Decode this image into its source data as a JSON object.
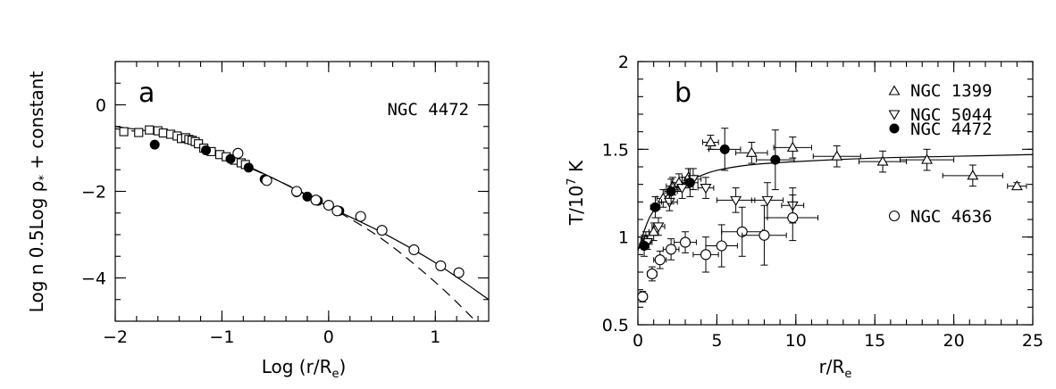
{
  "chart_data": [
    {
      "type": "scatter",
      "panel_label": "a",
      "annotation": "NGC 4472",
      "xlabel_main": "Log (r/R",
      "xlabel_sub": "e",
      "xlabel_close": ")",
      "ylabel": "Log n  0.5Log ρ",
      "ylabel_sub": "*",
      "ylabel_tail": " + constant",
      "xlim": [
        -2,
        1.5
      ],
      "ylim": [
        -5,
        1
      ],
      "xticks": [
        -2,
        -1,
        0,
        1
      ],
      "xtick_labels": [
        "−2",
        "−1",
        "0",
        "1"
      ],
      "yticks": [
        0,
        -2,
        -4
      ],
      "ytick_labels": [
        "0",
        "−2",
        "−4"
      ],
      "series": [
        {
          "name": "squares",
          "marker": "open-square",
          "x": [
            -1.92,
            -1.78,
            -1.68,
            -1.6,
            -1.55,
            -1.48,
            -1.42,
            -1.38,
            -1.34,
            -1.31,
            -1.28,
            -1.25,
            -1.22,
            -1.17,
            -1.1,
            -1.02,
            -0.96,
            -0.88,
            -0.82,
            -0.78
          ],
          "y": [
            -0.62,
            -0.64,
            -0.58,
            -0.6,
            -0.65,
            -0.68,
            -0.72,
            -0.78,
            -0.76,
            -0.8,
            -0.82,
            -0.85,
            -0.9,
            -1.0,
            -1.08,
            -1.15,
            -1.2,
            -1.28,
            -1.34,
            -1.38
          ]
        },
        {
          "name": "filled",
          "marker": "filled-circle",
          "x": [
            -1.63,
            -1.15,
            -0.92,
            -0.75,
            -0.6,
            -0.3,
            -0.2,
            -0.1,
            0.1
          ],
          "y": [
            -0.92,
            -1.05,
            -1.25,
            -1.45,
            -1.72,
            -2.02,
            -2.12,
            -2.22,
            -2.45
          ]
        },
        {
          "name": "open_circles",
          "marker": "open-circle",
          "x": [
            -0.85,
            -0.58,
            -0.3,
            -0.12,
            0.0,
            0.08,
            0.3,
            0.5,
            0.8,
            1.05,
            1.22
          ],
          "y": [
            -1.12,
            -1.75,
            -2.0,
            -2.2,
            -2.32,
            -2.45,
            -2.58,
            -2.9,
            -3.35,
            -3.72,
            -3.88
          ]
        }
      ],
      "curves": [
        {
          "name": "solid",
          "style": "solid",
          "x": [
            -2.0,
            -1.5,
            -1.0,
            -0.5,
            0.0,
            0.5,
            1.0,
            1.5
          ],
          "y": [
            -0.5,
            -0.7,
            -1.15,
            -1.72,
            -2.35,
            -2.95,
            -3.65,
            -4.5
          ]
        },
        {
          "name": "dashed",
          "style": "dashed",
          "x": [
            -2.0,
            -1.5,
            -1.0,
            -0.5,
            0.0,
            0.5,
            1.0,
            1.38
          ],
          "y": [
            -0.55,
            -0.75,
            -1.2,
            -1.72,
            -2.35,
            -3.1,
            -4.1,
            -5.0
          ]
        }
      ]
    },
    {
      "type": "scatter",
      "panel_label": "b",
      "xlabel_main": "r/R",
      "xlabel_sub": "e",
      "ylabel_main": "T/10",
      "ylabel_sup": "7",
      "ylabel_unit": " K",
      "xlim": [
        0,
        25
      ],
      "ylim": [
        0.5,
        2
      ],
      "xticks": [
        0,
        5,
        10,
        15,
        20,
        25
      ],
      "xtick_labels": [
        "0",
        "5",
        "10",
        "15",
        "20",
        "25"
      ],
      "yticks": [
        0.5,
        1,
        1.5,
        2
      ],
      "ytick_labels": [
        "0.5",
        "1",
        "1.5",
        "2"
      ],
      "legend": [
        {
          "label": "NGC 1399",
          "marker": "triangle-up"
        },
        {
          "label": "NGC 5044",
          "marker": "triangle-down"
        },
        {
          "label": "NGC 4472",
          "marker": "filled-circle"
        },
        {
          "label": "NGC 4636",
          "marker": "open-circle"
        }
      ],
      "series": [
        {
          "name": "NGC 1399",
          "marker": "triangle-up",
          "points": [
            {
              "x": 0.5,
              "y": 0.98,
              "xe": 0.3,
              "ye": 0.05
            },
            {
              "x": 1.0,
              "y": 1.03,
              "xe": 0.3,
              "ye": 0.05
            },
            {
              "x": 1.6,
              "y": 1.22,
              "xe": 0.4,
              "ye": 0.05
            },
            {
              "x": 2.2,
              "y": 1.29,
              "xe": 0.4,
              "ye": 0.05
            },
            {
              "x": 2.6,
              "y": 1.31,
              "xe": 0.4,
              "ye": 0.05
            },
            {
              "x": 3.2,
              "y": 1.34,
              "xe": 0.4,
              "ye": 0.05
            },
            {
              "x": 4.6,
              "y": 1.54,
              "xe": 0.5,
              "ye": 0.04
            },
            {
              "x": 7.2,
              "y": 1.48,
              "xe": 1.0,
              "ye": 0.06
            },
            {
              "x": 9.8,
              "y": 1.51,
              "xe": 1.2,
              "ye": 0.06
            },
            {
              "x": 12.6,
              "y": 1.46,
              "xe": 1.5,
              "ye": 0.06
            },
            {
              "x": 15.5,
              "y": 1.43,
              "xe": 1.5,
              "ye": 0.06
            },
            {
              "x": 18.3,
              "y": 1.44,
              "xe": 1.7,
              "ye": 0.06
            },
            {
              "x": 21.2,
              "y": 1.35,
              "xe": 1.9,
              "ye": 0.06
            },
            {
              "x": 24.0,
              "y": 1.29,
              "xe": 0.6,
              "ye": 0.02
            }
          ]
        },
        {
          "name": "NGC 5044",
          "marker": "triangle-down",
          "points": [
            {
              "x": 0.6,
              "y": 0.97,
              "xe": 0.3,
              "ye": 0.04
            },
            {
              "x": 1.3,
              "y": 1.06,
              "xe": 0.4,
              "ye": 0.05
            },
            {
              "x": 2.0,
              "y": 1.2,
              "xe": 0.5,
              "ye": 0.05
            },
            {
              "x": 2.8,
              "y": 1.28,
              "xe": 0.5,
              "ye": 0.06
            },
            {
              "x": 3.5,
              "y": 1.33,
              "xe": 0.5,
              "ye": 0.06
            },
            {
              "x": 4.3,
              "y": 1.28,
              "xe": 0.5,
              "ye": 0.06
            },
            {
              "x": 6.2,
              "y": 1.21,
              "xe": 1.2,
              "ye": 0.07
            },
            {
              "x": 8.2,
              "y": 1.21,
              "xe": 1.0,
              "ye": 0.1
            },
            {
              "x": 9.8,
              "y": 1.18,
              "xe": 0.7,
              "ye": 0.1
            }
          ]
        },
        {
          "name": "NGC 4472",
          "marker": "filled-circle",
          "points": [
            {
              "x": 0.4,
              "y": 0.95,
              "xe": 0.3,
              "ye": 0.06
            },
            {
              "x": 1.1,
              "y": 1.17,
              "xe": 0.3,
              "ye": 0.06
            },
            {
              "x": 2.1,
              "y": 1.26,
              "xe": 0.4,
              "ye": 0.07
            },
            {
              "x": 3.3,
              "y": 1.31,
              "xe": 0.5,
              "ye": 0.08
            },
            {
              "x": 5.5,
              "y": 1.5,
              "xe": 1.0,
              "ye": 0.12
            },
            {
              "x": 8.7,
              "y": 1.44,
              "xe": 1.2,
              "ye": 0.17
            }
          ]
        },
        {
          "name": "NGC 4636",
          "marker": "open-circle",
          "points": [
            {
              "x": 0.3,
              "y": 0.66,
              "xe": 0.3,
              "ye": 0.03
            },
            {
              "x": 0.9,
              "y": 0.79,
              "xe": 0.3,
              "ye": 0.04
            },
            {
              "x": 1.4,
              "y": 0.87,
              "xe": 0.4,
              "ye": 0.05
            },
            {
              "x": 2.1,
              "y": 0.93,
              "xe": 0.5,
              "ye": 0.06
            },
            {
              "x": 3.0,
              "y": 0.97,
              "xe": 0.7,
              "ye": 0.06
            },
            {
              "x": 4.3,
              "y": 0.9,
              "xe": 0.8,
              "ye": 0.1
            },
            {
              "x": 5.3,
              "y": 0.95,
              "xe": 1.0,
              "ye": 0.12
            },
            {
              "x": 6.6,
              "y": 1.03,
              "xe": 1.3,
              "ye": 0.14
            },
            {
              "x": 8.0,
              "y": 1.01,
              "xe": 1.4,
              "ye": 0.17
            },
            {
              "x": 9.8,
              "y": 1.11,
              "xe": 1.6,
              "ye": 0.13
            }
          ]
        }
      ],
      "curves": [
        {
          "name": "model",
          "style": "solid",
          "x": [
            0.0,
            0.5,
            1.0,
            2.0,
            3.0,
            4.0,
            5.0,
            7.0,
            10.0,
            15.0,
            20.0,
            25.0
          ],
          "y": [
            0.92,
            1.06,
            1.15,
            1.25,
            1.31,
            1.35,
            1.38,
            1.41,
            1.43,
            1.45,
            1.46,
            1.47
          ]
        }
      ]
    }
  ]
}
